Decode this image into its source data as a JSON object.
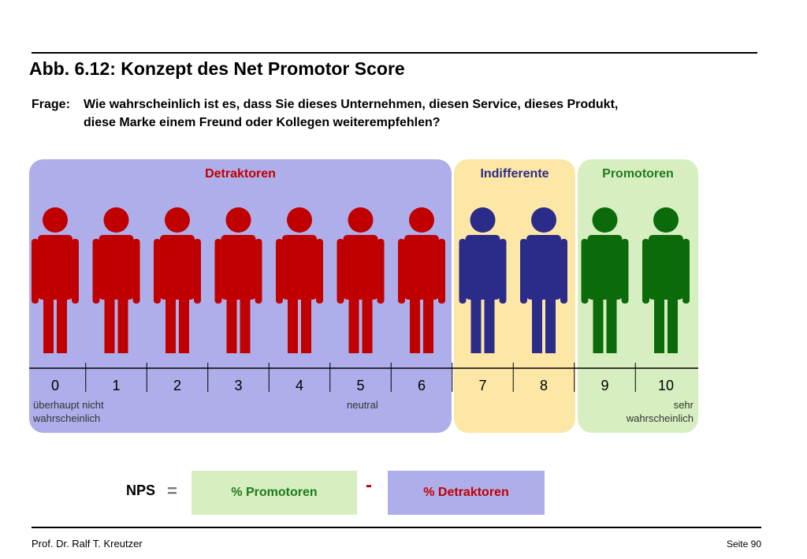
{
  "title": "Abb. 6.12: Konzept des Net Promotor Score",
  "question": {
    "label": "Frage:",
    "line1": "Wie wahrscheinlich ist es, dass Sie dieses Unternehmen, diesen Service, dieses Produkt,",
    "line2": "diese Marke einem Freund oder Kollegen weiterempfehlen?"
  },
  "groups": [
    {
      "name": "Detraktoren",
      "color": "#c00000",
      "scores": [
        0,
        1,
        2,
        3,
        4,
        5,
        6
      ]
    },
    {
      "name": "Indifferente",
      "color": "#2b2b8a",
      "scores": [
        7,
        8
      ]
    },
    {
      "name": "Promotoren",
      "color": "#1f7a1f",
      "scores": [
        9,
        10
      ]
    }
  ],
  "scale": {
    "values": [
      "0",
      "1",
      "2",
      "3",
      "4",
      "5",
      "6",
      "7",
      "8",
      "9",
      "10"
    ],
    "low_line1": "überhaupt nicht",
    "low_line2": "wahrscheinlich",
    "mid": "neutral",
    "high_line1": "sehr",
    "high_line2": "wahrscheinlich"
  },
  "colors": {
    "detractor_figure": "#c00000",
    "passive_figure": "#2b2b8a",
    "promoter_figure": "#0b6b0b",
    "detractor_panel": "#aeaeea",
    "passive_panel": "#fce7a6",
    "promoter_panel": "#d7efc0"
  },
  "formula": {
    "label": "NPS",
    "equals": "=",
    "promoters": "% Promotoren",
    "minus": "-",
    "detractors": "% Detraktoren"
  },
  "footer": {
    "author": "Prof. Dr. Ralf T. Kreutzer",
    "page": "Seite 90"
  }
}
